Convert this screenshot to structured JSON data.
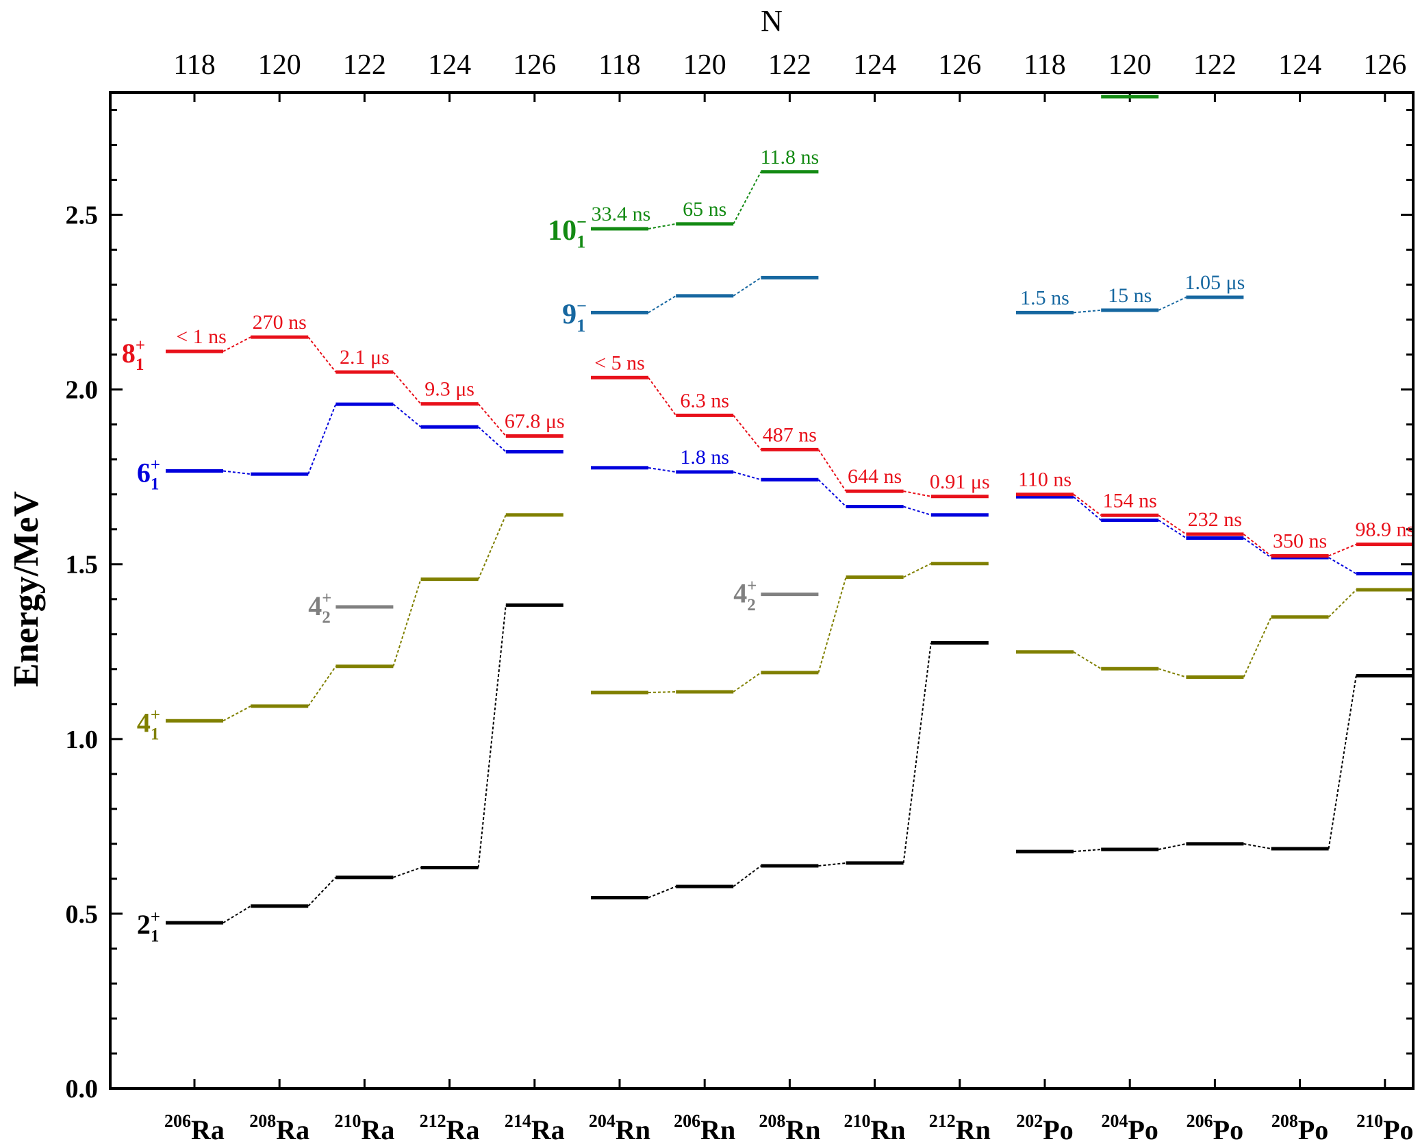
{
  "chart_data": {
    "type": "level-scheme",
    "title": "",
    "xlabel_top": "N",
    "ylabel": "Energy/MeV",
    "ylim": [
      0.0,
      2.85
    ],
    "ytick_labels": [
      "0.0",
      "0.5",
      "1.0",
      "1.5",
      "2.0",
      "2.5"
    ],
    "y_major_ticks": [
      0.0,
      0.5,
      1.0,
      1.5,
      2.0,
      2.5
    ],
    "y_minor_step": 0.1,
    "nuclei": [
      {
        "mass": "206",
        "element": "Ra",
        "N": "118"
      },
      {
        "mass": "208",
        "element": "Ra",
        "N": "120"
      },
      {
        "mass": "210",
        "element": "Ra",
        "N": "122"
      },
      {
        "mass": "212",
        "element": "Ra",
        "N": "124"
      },
      {
        "mass": "214",
        "element": "Ra",
        "N": "126"
      },
      {
        "mass": "204",
        "element": "Rn",
        "N": "118"
      },
      {
        "mass": "206",
        "element": "Rn",
        "N": "120"
      },
      {
        "mass": "208",
        "element": "Rn",
        "N": "122"
      },
      {
        "mass": "210",
        "element": "Rn",
        "N": "124"
      },
      {
        "mass": "212",
        "element": "Rn",
        "N": "126"
      },
      {
        "mass": "202",
        "element": "Po",
        "N": "118"
      },
      {
        "mass": "204",
        "element": "Po",
        "N": "120"
      },
      {
        "mass": "206",
        "element": "Po",
        "N": "122"
      },
      {
        "mass": "208",
        "element": "Po",
        "N": "124"
      },
      {
        "mass": "210",
        "element": "Po",
        "N": "126"
      }
    ],
    "series": [
      {
        "name": "2+1",
        "spin": "2",
        "parity": "+",
        "index": "1",
        "color": "#000000",
        "groups": [
          {
            "points": [
              [
                0,
                0.474
              ],
              [
                1,
                0.522
              ],
              [
                2,
                0.604
              ],
              [
                3,
                0.632
              ],
              [
                4,
                1.383
              ]
            ]
          },
          {
            "points": [
              [
                5,
                0.546
              ],
              [
                6,
                0.578
              ],
              [
                7,
                0.637
              ],
              [
                8,
                0.645
              ],
              [
                9,
                1.275
              ]
            ]
          },
          {
            "points": [
              [
                10,
                0.678
              ],
              [
                11,
                0.684
              ],
              [
                12,
                0.7
              ],
              [
                13,
                0.686
              ],
              [
                14,
                1.181
              ]
            ]
          }
        ],
        "half_lives": []
      },
      {
        "name": "4+1",
        "spin": "4",
        "parity": "+",
        "index": "1",
        "color": "#808000",
        "groups": [
          {
            "points": [
              [
                0,
                1.052
              ],
              [
                1,
                1.094
              ],
              [
                2,
                1.208
              ],
              [
                3,
                1.457
              ],
              [
                4,
                1.641
              ]
            ]
          },
          {
            "points": [
              [
                5,
                1.133
              ],
              [
                6,
                1.135
              ],
              [
                7,
                1.19
              ],
              [
                8,
                1.463
              ],
              [
                9,
                1.502
              ]
            ]
          },
          {
            "points": [
              [
                10,
                1.249
              ],
              [
                11,
                1.201
              ],
              [
                12,
                1.177
              ],
              [
                13,
                1.349
              ],
              [
                14,
                1.427
              ]
            ]
          }
        ],
        "half_lives": []
      },
      {
        "name": "4+2",
        "spin": "4",
        "parity": "+",
        "index": "2",
        "color": "#808080",
        "groups": [
          {
            "points": [
              [
                2,
                1.378
              ]
            ]
          },
          {
            "points": [
              [
                7,
                1.414
              ]
            ]
          }
        ],
        "half_lives": []
      },
      {
        "name": "6+1",
        "spin": "6",
        "parity": "+",
        "index": "1",
        "color": "#0000dd",
        "groups": [
          {
            "points": [
              [
                0,
                1.767
              ],
              [
                1,
                1.758
              ],
              [
                2,
                1.958
              ],
              [
                3,
                1.893
              ],
              [
                4,
                1.822
              ]
            ]
          },
          {
            "points": [
              [
                5,
                1.776
              ],
              [
                6,
                1.764
              ],
              [
                7,
                1.742
              ],
              [
                8,
                1.665
              ],
              [
                9,
                1.641
              ]
            ]
          },
          {
            "points": [
              [
                10,
                1.693
              ],
              [
                11,
                1.626
              ],
              [
                12,
                1.575
              ],
              [
                13,
                1.519
              ],
              [
                14,
                1.473
              ]
            ]
          }
        ],
        "half_lives": [
          {
            "pos": 6,
            "text": "1.8 ns"
          }
        ]
      },
      {
        "name": "8+1",
        "spin": "8",
        "parity": "+",
        "index": "1",
        "color": "#e8101a",
        "groups": [
          {
            "points": [
              [
                0,
                2.109
              ],
              [
                1,
                2.15
              ],
              [
                2,
                2.05
              ],
              [
                3,
                1.959
              ],
              [
                4,
                1.867
              ]
            ]
          },
          {
            "points": [
              [
                5,
                2.034
              ],
              [
                6,
                1.926
              ],
              [
                7,
                1.828
              ],
              [
                8,
                1.709
              ],
              [
                9,
                1.694
              ]
            ]
          },
          {
            "points": [
              [
                10,
                1.7
              ],
              [
                11,
                1.64
              ],
              [
                12,
                1.586
              ],
              [
                13,
                1.524
              ],
              [
                14,
                1.557
              ]
            ]
          }
        ],
        "half_lives": [
          {
            "pos": 0,
            "text": "< 1 ns"
          },
          {
            "pos": 1,
            "text": "270 ns"
          },
          {
            "pos": 2,
            "text": "2.1 μs"
          },
          {
            "pos": 3,
            "text": "9.3 μs"
          },
          {
            "pos": 4,
            "text": "67.8 μs"
          },
          {
            "pos": 5,
            "text": "< 5 ns"
          },
          {
            "pos": 6,
            "text": "6.3 ns"
          },
          {
            "pos": 7,
            "text": "487 ns"
          },
          {
            "pos": 8,
            "text": "644 ns"
          },
          {
            "pos": 9,
            "text": "0.91 μs"
          },
          {
            "pos": 10,
            "text": "110 ns"
          },
          {
            "pos": 11,
            "text": "154 ns"
          },
          {
            "pos": 12,
            "text": "232 ns"
          },
          {
            "pos": 13,
            "text": "350 ns"
          },
          {
            "pos": 14,
            "text": "98.9 ns"
          }
        ]
      },
      {
        "name": "9-1",
        "spin": "9",
        "parity": "−",
        "index": "1",
        "color": "#1667a0",
        "groups": [
          {
            "points": [
              [
                5,
                2.22
              ],
              [
                6,
                2.268
              ],
              [
                7,
                2.32
              ]
            ]
          },
          {
            "points": [
              [
                10,
                2.22
              ],
              [
                11,
                2.227
              ],
              [
                12,
                2.264
              ]
            ]
          }
        ],
        "half_lives": [
          {
            "pos": 10,
            "text": "1.5 ns"
          },
          {
            "pos": 11,
            "text": "15 ns"
          },
          {
            "pos": 12,
            "text": "1.05 μs"
          }
        ]
      },
      {
        "name": "10-1",
        "spin": "10",
        "parity": "−",
        "index": "1",
        "color": "#138a13",
        "groups": [
          {
            "points": [
              [
                5,
                2.46
              ],
              [
                6,
                2.474
              ],
              [
                7,
                2.623
              ]
            ]
          },
          {
            "points": [
              [
                11,
                2.838
              ]
            ]
          }
        ],
        "half_lives": [
          {
            "pos": 5,
            "text": "33.4 ns"
          },
          {
            "pos": 6,
            "text": "65 ns"
          },
          {
            "pos": 7,
            "text": "11.8 ns"
          }
        ]
      }
    ]
  }
}
